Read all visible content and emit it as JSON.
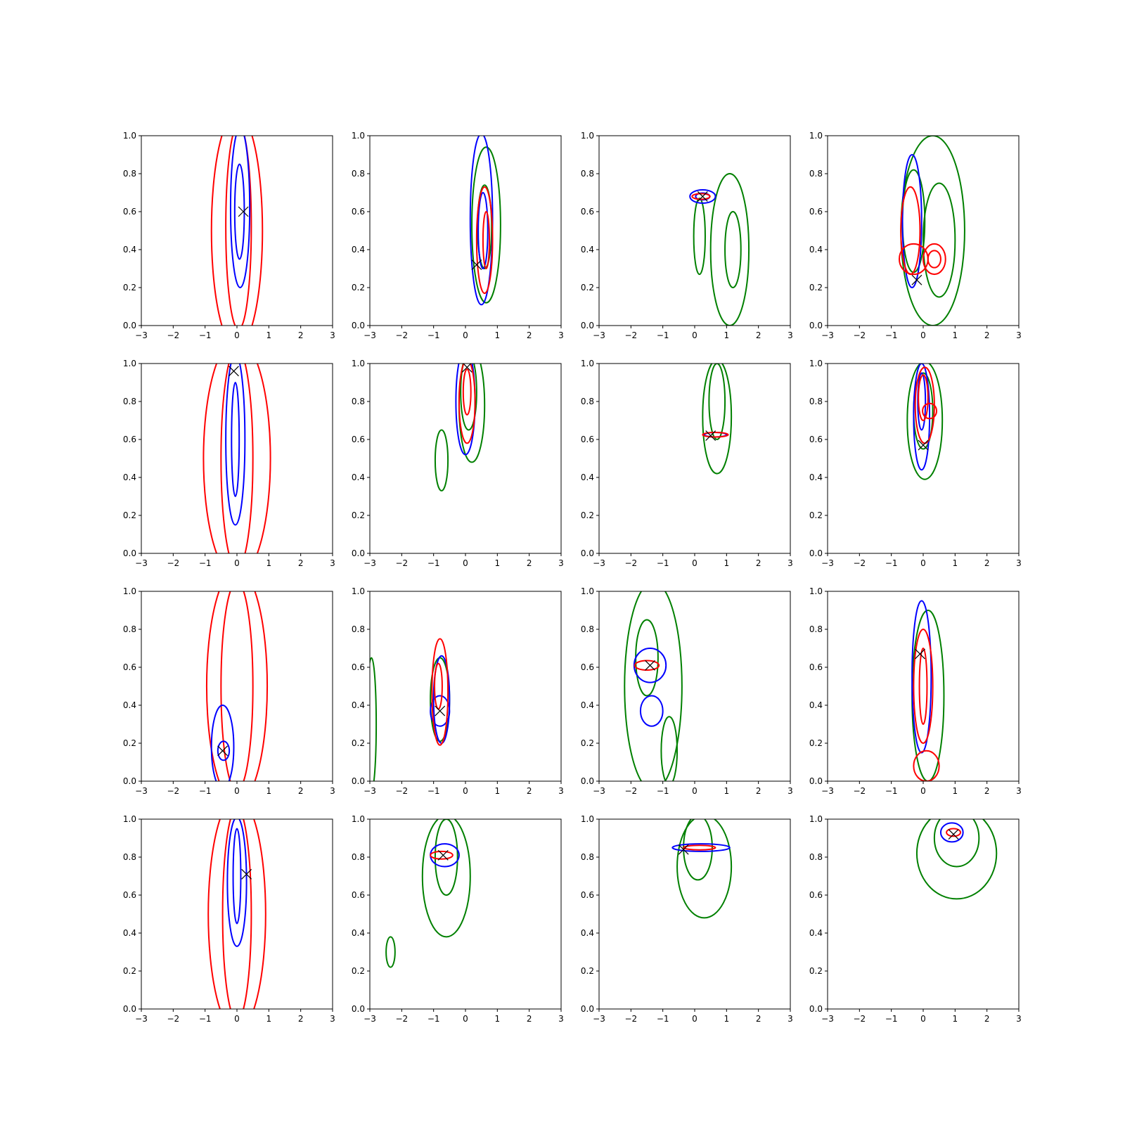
{
  "colors": {
    "red": "#ff0000",
    "blue": "#0000ff",
    "green": "#008000",
    "marker": "#000000"
  },
  "chart_data": {
    "type": "contour",
    "layout": "4x4 grid of subplots",
    "xlim": [
      -3,
      3
    ],
    "ylim": [
      0,
      1
    ],
    "xticks": [
      "−3",
      "−2",
      "−1",
      "0",
      "1",
      "2",
      "3"
    ],
    "yticks": [
      "0.0",
      "0.2",
      "0.4",
      "0.6",
      "0.8",
      "1.0"
    ],
    "title": "",
    "xlabel": "",
    "ylabel": "",
    "legend": "none",
    "grid": false,
    "panels": [
      {
        "marker": [
          0.2,
          0.6
        ],
        "contours": [
          {
            "color": "red",
            "x": 0.0,
            "y": 0.5,
            "sx": 0.8,
            "sy": 0.62
          },
          {
            "color": "red",
            "x": 0.05,
            "y": 0.52,
            "sx": 0.4,
            "sy": 0.54
          },
          {
            "color": "blue",
            "x": 0.1,
            "y": 0.62,
            "sx": 0.3,
            "sy": 0.42
          },
          {
            "color": "blue",
            "x": 0.08,
            "y": 0.6,
            "sx": 0.15,
            "sy": 0.25
          }
        ]
      },
      {
        "marker": [
          0.35,
          0.32
        ],
        "contours": [
          {
            "color": "green",
            "x": 0.65,
            "y": 0.53,
            "sx": 0.45,
            "sy": 0.41
          },
          {
            "color": "green",
            "x": 0.6,
            "y": 0.52,
            "sx": 0.22,
            "sy": 0.22
          },
          {
            "color": "blue",
            "x": 0.5,
            "y": 0.56,
            "sx": 0.35,
            "sy": 0.45
          },
          {
            "color": "blue",
            "x": 0.55,
            "y": 0.5,
            "sx": 0.15,
            "sy": 0.2
          },
          {
            "color": "red",
            "x": 0.6,
            "y": 0.45,
            "sx": 0.25,
            "sy": 0.28
          },
          {
            "color": "red",
            "x": 0.65,
            "y": 0.45,
            "sx": 0.1,
            "sy": 0.15
          }
        ]
      },
      {
        "marker": [
          0.25,
          0.68
        ],
        "contours": [
          {
            "color": "green",
            "x": 1.1,
            "y": 0.4,
            "sx": 0.6,
            "sy": 0.4
          },
          {
            "color": "green",
            "x": 1.2,
            "y": 0.4,
            "sx": 0.25,
            "sy": 0.2
          },
          {
            "color": "green",
            "x": 0.15,
            "y": 0.47,
            "sx": 0.18,
            "sy": 0.2
          },
          {
            "color": "blue",
            "x": 0.25,
            "y": 0.68,
            "sx": 0.4,
            "sy": 0.035
          },
          {
            "color": "blue",
            "x": 0.25,
            "y": 0.68,
            "sx": 0.22,
            "sy": 0.018
          },
          {
            "color": "red",
            "x": 0.2,
            "y": 0.68,
            "sx": 0.28,
            "sy": 0.015
          }
        ]
      },
      {
        "marker": [
          -0.2,
          0.24
        ],
        "contours": [
          {
            "color": "green",
            "x": 0.3,
            "y": 0.5,
            "sx": 1.0,
            "sy": 0.5
          },
          {
            "color": "green",
            "x": 0.5,
            "y": 0.45,
            "sx": 0.5,
            "sy": 0.3
          },
          {
            "color": "green",
            "x": -0.3,
            "y": 0.55,
            "sx": 0.35,
            "sy": 0.27
          },
          {
            "color": "blue",
            "x": -0.35,
            "y": 0.55,
            "sx": 0.3,
            "sy": 0.35
          },
          {
            "color": "red",
            "x": -0.4,
            "y": 0.5,
            "sx": 0.3,
            "sy": 0.23
          },
          {
            "color": "red",
            "x": -0.3,
            "y": 0.35,
            "sx": 0.45,
            "sy": 0.08
          },
          {
            "color": "red",
            "x": 0.35,
            "y": 0.35,
            "sx": 0.35,
            "sy": 0.08
          },
          {
            "color": "red",
            "x": 0.35,
            "y": 0.35,
            "sx": 0.2,
            "sy": 0.045
          }
        ]
      },
      {
        "marker": [
          -0.1,
          0.96
        ],
        "contours": [
          {
            "color": "red",
            "x": 0.0,
            "y": 0.5,
            "sx": 1.05,
            "sy": 0.63
          },
          {
            "color": "red",
            "x": 0.0,
            "y": 0.5,
            "sx": 0.5,
            "sy": 0.58
          },
          {
            "color": "blue",
            "x": -0.05,
            "y": 0.6,
            "sx": 0.3,
            "sy": 0.45
          },
          {
            "color": "blue",
            "x": -0.05,
            "y": 0.6,
            "sx": 0.12,
            "sy": 0.3
          }
        ]
      },
      {
        "marker": [
          0.05,
          0.98
        ],
        "contours": [
          {
            "color": "green",
            "x": 0.2,
            "y": 0.78,
            "sx": 0.4,
            "sy": 0.3
          },
          {
            "color": "green",
            "x": 0.1,
            "y": 0.85,
            "sx": 0.25,
            "sy": 0.2
          },
          {
            "color": "green",
            "x": -0.75,
            "y": 0.49,
            "sx": 0.2,
            "sy": 0.16
          },
          {
            "color": "blue",
            "x": 0.0,
            "y": 0.8,
            "sx": 0.3,
            "sy": 0.28
          },
          {
            "color": "red",
            "x": 0.05,
            "y": 0.8,
            "sx": 0.25,
            "sy": 0.22
          },
          {
            "color": "red",
            "x": 0.05,
            "y": 0.85,
            "sx": 0.12,
            "sy": 0.12
          }
        ]
      },
      {
        "marker": [
          0.5,
          0.62
        ],
        "contours": [
          {
            "color": "green",
            "x": 0.7,
            "y": 0.72,
            "sx": 0.45,
            "sy": 0.3
          },
          {
            "color": "green",
            "x": 0.7,
            "y": 0.8,
            "sx": 0.25,
            "sy": 0.2
          },
          {
            "color": "blue",
            "x": 0.65,
            "y": 0.625,
            "sx": 0.35,
            "sy": 0.012
          },
          {
            "color": "red",
            "x": 0.65,
            "y": 0.625,
            "sx": 0.4,
            "sy": 0.012
          }
        ]
      },
      {
        "marker": [
          0.0,
          0.57
        ],
        "contours": [
          {
            "color": "green",
            "x": 0.05,
            "y": 0.7,
            "sx": 0.55,
            "sy": 0.31
          },
          {
            "color": "green",
            "x": 0.0,
            "y": 0.75,
            "sx": 0.3,
            "sy": 0.2
          },
          {
            "color": "blue",
            "x": -0.05,
            "y": 0.72,
            "sx": 0.25,
            "sy": 0.28
          },
          {
            "color": "blue",
            "x": -0.05,
            "y": 0.8,
            "sx": 0.12,
            "sy": 0.15
          },
          {
            "color": "red",
            "x": 0.05,
            "y": 0.78,
            "sx": 0.3,
            "sy": 0.2
          },
          {
            "color": "red",
            "x": 0.0,
            "y": 0.82,
            "sx": 0.15,
            "sy": 0.12
          },
          {
            "color": "red",
            "x": 0.2,
            "y": 0.75,
            "sx": 0.22,
            "sy": 0.04
          }
        ]
      },
      {
        "marker": [
          -0.45,
          0.16
        ],
        "contours": [
          {
            "color": "red",
            "x": 0.0,
            "y": 0.5,
            "sx": 0.95,
            "sy": 0.62
          },
          {
            "color": "red",
            "x": 0.0,
            "y": 0.5,
            "sx": 0.5,
            "sy": 0.55
          },
          {
            "color": "blue",
            "x": -0.45,
            "y": 0.18,
            "sx": 0.35,
            "sy": 0.22
          },
          {
            "color": "blue",
            "x": -0.42,
            "y": 0.16,
            "sx": 0.18,
            "sy": 0.05
          }
        ]
      },
      {
        "marker": [
          -0.8,
          0.37
        ],
        "contours": [
          {
            "color": "green",
            "x": -0.8,
            "y": 0.43,
            "sx": 0.3,
            "sy": 0.22
          },
          {
            "color": "green",
            "x": -2.95,
            "y": 0.3,
            "sx": 0.15,
            "sy": 0.35
          },
          {
            "color": "blue",
            "x": -0.75,
            "y": 0.43,
            "sx": 0.25,
            "sy": 0.23
          },
          {
            "color": "blue",
            "x": -0.8,
            "y": 0.37,
            "sx": 0.3,
            "sy": 0.08
          },
          {
            "color": "red",
            "x": -0.8,
            "y": 0.47,
            "sx": 0.25,
            "sy": 0.28
          },
          {
            "color": "red",
            "x": -0.85,
            "y": 0.5,
            "sx": 0.12,
            "sy": 0.12
          }
        ]
      },
      {
        "marker": [
          -1.4,
          0.61
        ],
        "contours": [
          {
            "color": "green",
            "x": -1.3,
            "y": 0.5,
            "sx": 0.9,
            "sy": 0.55
          },
          {
            "color": "green",
            "x": -1.5,
            "y": 0.65,
            "sx": 0.35,
            "sy": 0.2
          },
          {
            "color": "green",
            "x": -0.8,
            "y": 0.16,
            "sx": 0.25,
            "sy": 0.18
          },
          {
            "color": "blue",
            "x": -1.4,
            "y": 0.61,
            "sx": 0.5,
            "sy": 0.09
          },
          {
            "color": "blue",
            "x": -1.35,
            "y": 0.37,
            "sx": 0.35,
            "sy": 0.08
          },
          {
            "color": "red",
            "x": -1.5,
            "y": 0.61,
            "sx": 0.38,
            "sy": 0.025
          }
        ]
      },
      {
        "marker": [
          -0.1,
          0.67
        ],
        "contours": [
          {
            "color": "green",
            "x": 0.15,
            "y": 0.45,
            "sx": 0.5,
            "sy": 0.45
          },
          {
            "color": "blue",
            "x": -0.05,
            "y": 0.55,
            "sx": 0.3,
            "sy": 0.4
          },
          {
            "color": "red",
            "x": 0.0,
            "y": 0.5,
            "sx": 0.3,
            "sy": 0.3
          },
          {
            "color": "red",
            "x": 0.0,
            "y": 0.5,
            "sx": 0.12,
            "sy": 0.2
          },
          {
            "color": "red",
            "x": 0.1,
            "y": 0.08,
            "sx": 0.4,
            "sy": 0.08
          }
        ]
      },
      {
        "marker": [
          0.3,
          0.71
        ],
        "contours": [
          {
            "color": "red",
            "x": 0.0,
            "y": 0.5,
            "sx": 0.9,
            "sy": 0.62
          },
          {
            "color": "red",
            "x": 0.0,
            "y": 0.5,
            "sx": 0.45,
            "sy": 0.56
          },
          {
            "color": "blue",
            "x": 0.0,
            "y": 0.67,
            "sx": 0.3,
            "sy": 0.34
          },
          {
            "color": "blue",
            "x": 0.0,
            "y": 0.7,
            "sx": 0.12,
            "sy": 0.25
          }
        ]
      },
      {
        "marker": [
          -0.7,
          0.81
        ],
        "contours": [
          {
            "color": "green",
            "x": -0.6,
            "y": 0.7,
            "sx": 0.75,
            "sy": 0.32
          },
          {
            "color": "green",
            "x": -0.6,
            "y": 0.8,
            "sx": 0.35,
            "sy": 0.2
          },
          {
            "color": "green",
            "x": -2.35,
            "y": 0.3,
            "sx": 0.14,
            "sy": 0.08
          },
          {
            "color": "blue",
            "x": -0.65,
            "y": 0.81,
            "sx": 0.45,
            "sy": 0.06
          },
          {
            "color": "red",
            "x": -0.75,
            "y": 0.81,
            "sx": 0.35,
            "sy": 0.02
          }
        ]
      },
      {
        "marker": [
          -0.35,
          0.84
        ],
        "contours": [
          {
            "color": "green",
            "x": 0.3,
            "y": 0.75,
            "sx": 0.85,
            "sy": 0.27
          },
          {
            "color": "green",
            "x": 0.1,
            "y": 0.85,
            "sx": 0.45,
            "sy": 0.17
          },
          {
            "color": "blue",
            "x": 0.2,
            "y": 0.85,
            "sx": 0.9,
            "sy": 0.02
          },
          {
            "color": "red",
            "x": 0.15,
            "y": 0.85,
            "sx": 0.5,
            "sy": 0.012
          }
        ]
      },
      {
        "marker": [
          0.95,
          0.92
        ],
        "contours": [
          {
            "color": "green",
            "x": 1.05,
            "y": 0.82,
            "sx": 1.25,
            "sy": 0.24
          },
          {
            "color": "green",
            "x": 1.05,
            "y": 0.9,
            "sx": 0.7,
            "sy": 0.15
          },
          {
            "color": "blue",
            "x": 0.9,
            "y": 0.93,
            "sx": 0.35,
            "sy": 0.05
          },
          {
            "color": "red",
            "x": 0.95,
            "y": 0.93,
            "sx": 0.22,
            "sy": 0.02
          }
        ]
      }
    ]
  }
}
